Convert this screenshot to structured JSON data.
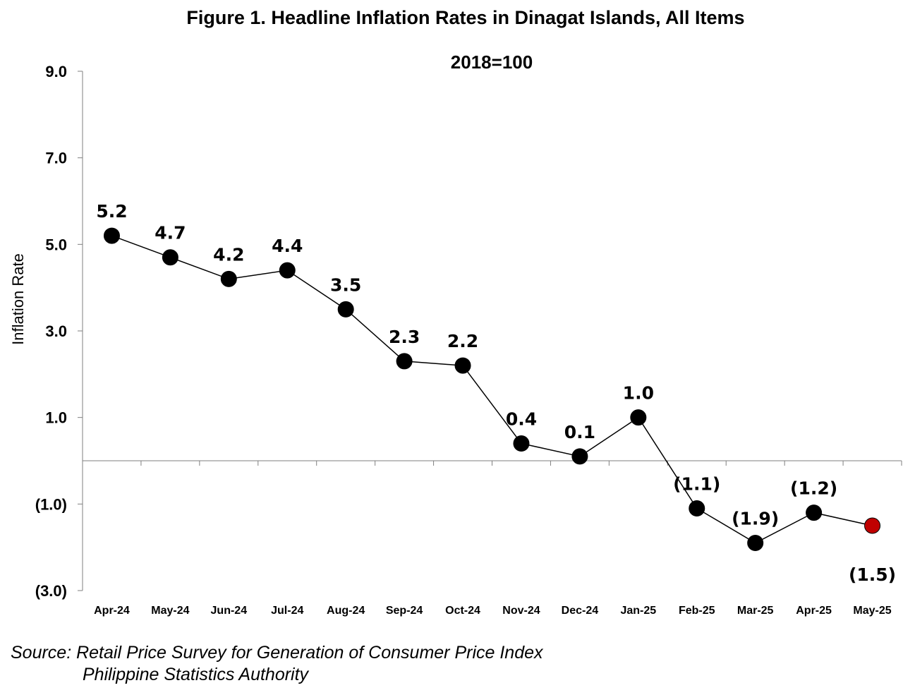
{
  "chart_data": {
    "type": "line",
    "title": "Figure 1. Headline Inflation Rates in Dinagat Islands, All Items",
    "subtitle": "2018=100",
    "ylabel": "Inflation Rate",
    "xlabel": "",
    "ylim": [
      -3.0,
      9.0
    ],
    "y_ticks": [
      "9.0",
      "7.0",
      "5.0",
      "3.0",
      "1.0",
      "(1.0)",
      "(3.0)"
    ],
    "y_tick_values": [
      9,
      7,
      5,
      3,
      1,
      -1,
      -3
    ],
    "categories": [
      "Apr-24",
      "May-24",
      "Jun-24",
      "Jul-24",
      "Aug-24",
      "Sep-24",
      "Oct-24",
      "Nov-24",
      "Dec-24",
      "Jan-25",
      "Feb-25",
      "Mar-25",
      "Apr-25",
      "May-25"
    ],
    "values": [
      5.2,
      4.7,
      4.2,
      4.4,
      3.5,
      2.3,
      2.2,
      0.4,
      0.1,
      1.0,
      -1.1,
      -1.9,
      -1.2,
      -1.5
    ],
    "data_labels": [
      "5.2",
      "4.7",
      "4.2",
      "4.4",
      "3.5",
      "2.3",
      "2.2",
      "0.4",
      "0.1",
      "1.0",
      "(1.1)",
      "(1.9)",
      "(1.2)",
      "(1.5)"
    ],
    "grid": false,
    "legend": "none",
    "colors": {
      "marker": "#000000",
      "highlight_marker": "#c00000",
      "line": "#000000"
    }
  },
  "source": {
    "line1": "Source: Retail Price Survey for Generation of Consumer Price Index",
    "line2": "Philippine Statistics Authority"
  }
}
